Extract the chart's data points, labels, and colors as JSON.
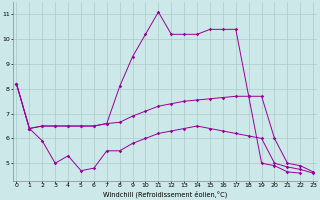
{
  "bg_color": "#cce8e8",
  "grid_color": "#aacccc",
  "line_color": "#990099",
  "xlim": [
    -0.3,
    23.3
  ],
  "ylim": [
    4.3,
    11.5
  ],
  "yticks": [
    5,
    6,
    7,
    8,
    9,
    10,
    11
  ],
  "xticks": [
    0,
    1,
    2,
    3,
    4,
    5,
    6,
    7,
    8,
    9,
    10,
    11,
    12,
    13,
    14,
    15,
    16,
    17,
    18,
    19,
    20,
    21,
    22,
    23
  ],
  "xlabel": "Windchill (Refroidissement éolien,°C)",
  "line1_x": [
    0,
    1,
    2,
    3,
    4,
    5,
    6,
    7,
    8,
    9,
    10,
    11,
    12,
    13,
    14,
    15,
    16,
    17,
    18,
    19,
    20,
    21,
    22,
    23
  ],
  "line1_y": [
    8.2,
    6.4,
    6.5,
    6.5,
    6.5,
    6.5,
    6.5,
    6.6,
    8.1,
    9.3,
    10.2,
    11.1,
    10.2,
    10.2,
    10.2,
    10.4,
    10.4,
    10.4,
    7.7,
    5.0,
    4.9,
    4.65,
    4.6,
    null
  ],
  "line2_x": [
    0,
    1,
    2,
    3,
    4,
    5,
    6,
    7,
    8,
    9,
    10,
    11,
    12,
    13,
    14,
    15,
    16,
    17,
    18,
    19,
    20,
    21,
    22,
    23
  ],
  "line2_y": [
    8.2,
    6.4,
    6.5,
    6.5,
    6.5,
    6.5,
    6.5,
    6.6,
    6.65,
    6.9,
    7.1,
    7.3,
    7.4,
    7.5,
    7.55,
    7.6,
    7.65,
    7.7,
    7.7,
    7.7,
    6.0,
    5.0,
    4.9,
    4.65
  ],
  "line3_x": [
    0,
    1,
    2,
    3,
    4,
    5,
    6,
    7,
    8,
    9,
    10,
    11,
    12,
    13,
    14,
    15,
    16,
    17,
    18,
    19,
    20,
    21,
    22,
    23
  ],
  "line3_y": [
    8.2,
    6.4,
    5.9,
    5.0,
    5.3,
    4.7,
    4.8,
    5.5,
    5.5,
    5.8,
    6.0,
    6.2,
    6.3,
    6.4,
    6.5,
    6.4,
    6.3,
    6.2,
    6.1,
    6.0,
    5.0,
    4.85,
    4.75,
    4.6
  ]
}
